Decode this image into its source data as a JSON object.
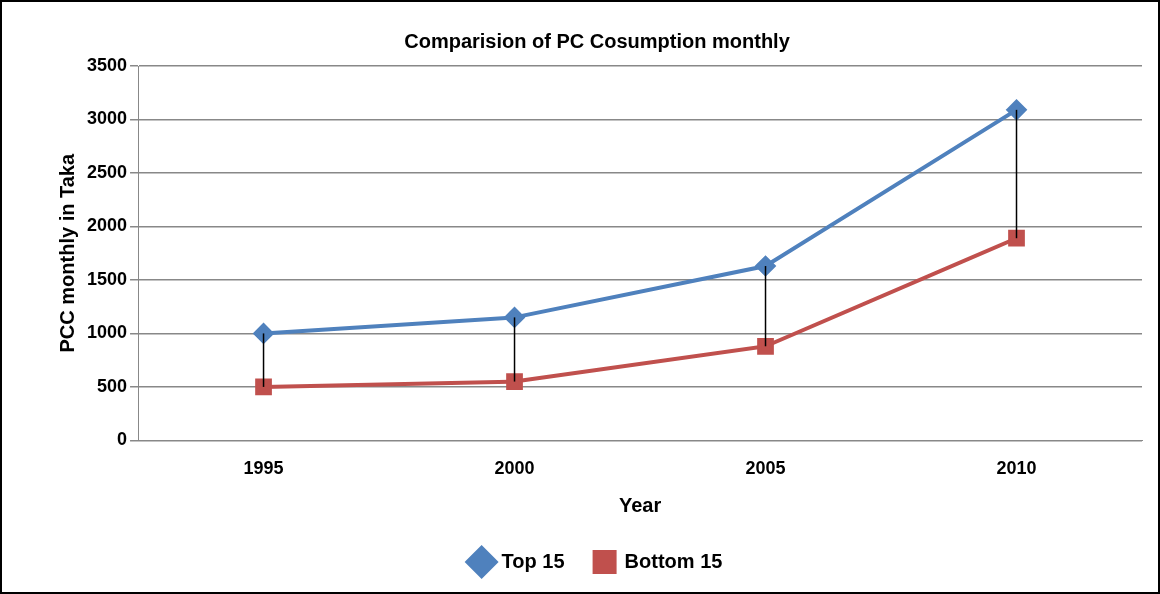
{
  "chart_data": {
    "type": "line",
    "title": "Comparision of PC Cosumption monthly",
    "xlabel": "Year",
    "ylabel": "PCC monthly in Taka",
    "categories": [
      "1995",
      "2000",
      "2005",
      "2010"
    ],
    "series": [
      {
        "name": "Top 15",
        "color": "#4f81bd",
        "marker": "diamond",
        "values": [
          1000,
          1150,
          1630,
          3090
        ],
        "errors": [
          [
            500,
            1000
          ],
          [
            550,
            1150
          ],
          [
            880,
            1630
          ],
          [
            1890,
            3090
          ]
        ]
      },
      {
        "name": "Bottom 15",
        "color": "#c0504d",
        "marker": "square",
        "values": [
          500,
          550,
          880,
          1890
        ]
      }
    ],
    "ylim": [
      0,
      3500
    ],
    "yticks": [
      0,
      500,
      1000,
      1500,
      2000,
      2500,
      3000,
      3500
    ],
    "grid": "y",
    "legend": "bottom",
    "line_style": "solid"
  }
}
